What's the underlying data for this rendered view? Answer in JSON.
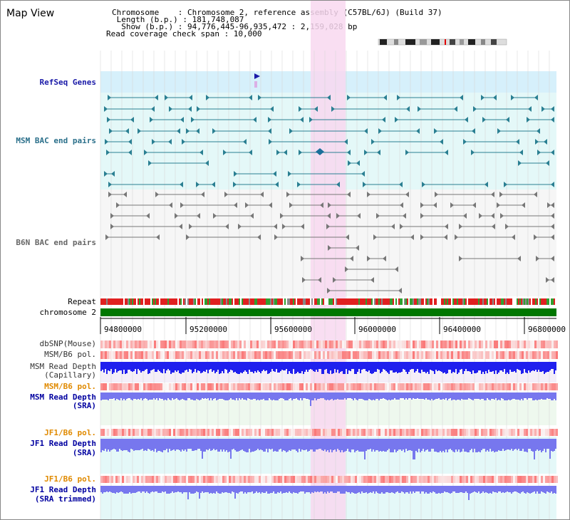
{
  "header": {
    "title": "Map View",
    "info_lines": [
      "Chromosome    : Chromosome 2, reference assembly (C57BL/6J) (Build 37)",
      " Length (b.p.) : 181,748,087",
      "  Show (b.p.) : 94,776,445-96,935,472 : 2,159,028 bp",
      "Read coverage check span : 10,000"
    ]
  },
  "tracks": {
    "refseq": "RefSeq Genes",
    "msm_bac": "MSM BAC end pairs",
    "b6n_bac": "B6N BAC end pairs",
    "repeat": "Repeat",
    "chromosome": "chromosome 2",
    "dbsnp": "dbSNP(Mouse)",
    "msm_b6_pol": "MSM/B6 pol.",
    "msm_read_depth_cap_1": "MSM Read Depth",
    "msm_read_depth_cap_2": "(Capillary)",
    "msm_b6_pol_2": "MSM/B6 pol.",
    "msm_read_depth_sra_1": "MSM Read Depth",
    "msm_read_depth_sra_2": "(SRA)",
    "jf1_b6_pol": "JF1/B6 pol.",
    "jf1_read_depth_sra_1": "JF1 Read Depth",
    "jf1_read_depth_sra_2": "(SRA)",
    "jf1_b6_pol_2": "JF1/B6 pol.",
    "jf1_read_depth_trim_1": "JF1 Read Depth",
    "jf1_read_depth_trim_2": "(SRA trimmed)"
  },
  "axis": {
    "ticks": [
      "94800000",
      "95200000",
      "95600000",
      "96000000",
      "96400000",
      "96800000"
    ]
  },
  "colors": {
    "refseq_label": "#1a1aa8",
    "msm_label": "#2a6f8a",
    "b6n_label": "#666666",
    "orange_label": "#e08a00",
    "blue_label": "#0000a0",
    "highlight": "#f8d8f0",
    "chromosome_bar": "#007700",
    "depth_blue": "#2020ee",
    "depth_light": "#7777ee"
  }
}
